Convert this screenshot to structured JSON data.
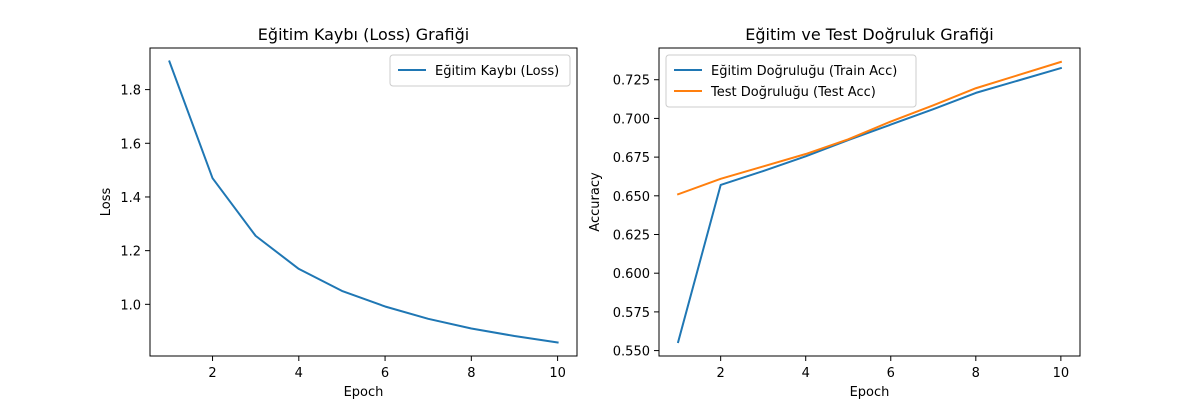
{
  "chart_data": [
    {
      "type": "line",
      "title": "Eğitim Kaybı (Loss) Grafiği",
      "xlabel": "Epoch",
      "ylabel": "Loss",
      "xlim": [
        0.55,
        10.45
      ],
      "ylim": [
        0.8075,
        1.955
      ],
      "xticks": [
        2,
        4,
        6,
        8,
        10
      ],
      "yticks": [
        1.0,
        1.2,
        1.4,
        1.6,
        1.8
      ],
      "x": [
        1,
        2,
        3,
        4,
        5,
        6,
        7,
        8,
        9,
        10
      ],
      "legend_position": "upper right",
      "grid": false,
      "series": [
        {
          "name": "Eğitim Kaybı (Loss)",
          "color": "#1f77b4",
          "values": [
            1.905,
            1.47,
            1.255,
            1.132,
            1.05,
            0.992,
            0.946,
            0.91,
            0.882,
            0.858
          ]
        }
      ]
    },
    {
      "type": "line",
      "title": "Eğitim ve Test Doğruluk Grafiği",
      "xlabel": "Epoch",
      "ylabel": "Accuracy",
      "xlim": [
        0.55,
        10.45
      ],
      "ylim": [
        0.5465,
        0.7455
      ],
      "xticks": [
        2,
        4,
        6,
        8,
        10
      ],
      "yticks": [
        0.55,
        0.575,
        0.6,
        0.625,
        0.65,
        0.675,
        0.7,
        0.725
      ],
      "tick_format": 3,
      "x": [
        1,
        2,
        3,
        4,
        5,
        6,
        7,
        8,
        9,
        10
      ],
      "legend_position": "upper left",
      "grid": false,
      "series": [
        {
          "name": "Eğitim Doğruluğu (Train Acc)",
          "color": "#1f77b4",
          "values": [
            0.5555,
            0.657,
            0.666,
            0.6755,
            0.686,
            0.696,
            0.706,
            0.7165,
            0.7245,
            0.7325
          ]
        },
        {
          "name": "Test Doğruluğu (Test Acc)",
          "color": "#ff7f0e",
          "values": [
            0.651,
            0.661,
            0.669,
            0.677,
            0.6865,
            0.698,
            0.7085,
            0.7195,
            0.728,
            0.7365
          ]
        }
      ]
    }
  ]
}
